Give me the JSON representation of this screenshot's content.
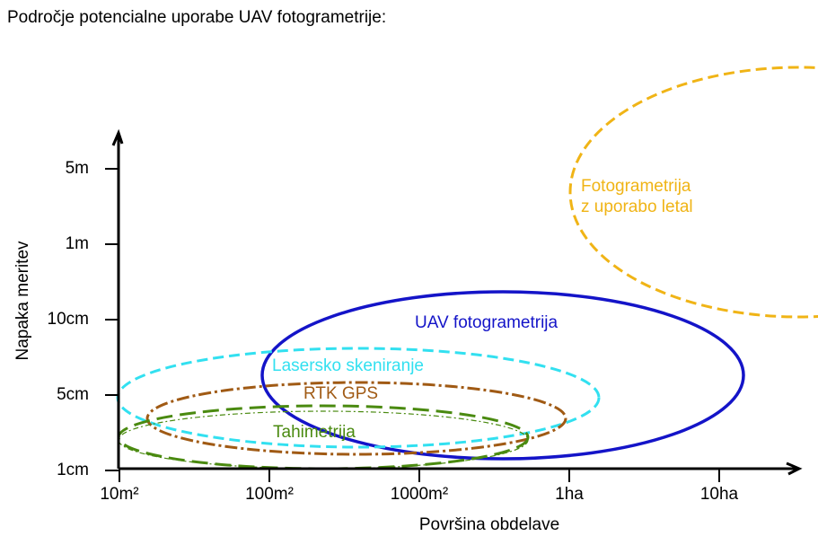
{
  "title": "Področje potencialne uporabe UAV fotogrametrije:",
  "y_axis": {
    "label": "Napaka meritev",
    "ticks": [
      "5m",
      "1m",
      "10cm",
      "5cm",
      "1cm"
    ]
  },
  "x_axis": {
    "label": "Površina obdelave",
    "ticks": [
      "10m²",
      "100m²",
      "1000m²",
      "1ha",
      "10ha"
    ]
  },
  "regions": [
    {
      "lines": [
        "Fotogrametrija",
        "z uporabo letal"
      ]
    },
    {
      "lines": [
        "UAV fotogrametrija"
      ]
    },
    {
      "lines": [
        "Lasersko skeniranje"
      ]
    },
    {
      "lines": [
        "RTK GPS"
      ]
    },
    {
      "lines": [
        "Tahimetrija"
      ]
    }
  ]
}
